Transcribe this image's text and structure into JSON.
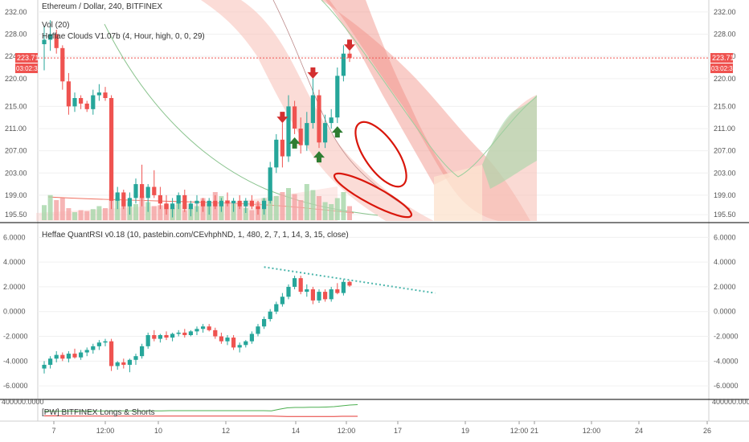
{
  "chart_data": [
    {
      "type": "candlestick",
      "title": "Ethereum / Dollar, 240, BITFINEX",
      "indicators": [
        "Vol (20)",
        "Heffae Clouds V1.07b (4, Hour, high, 0, 0, 29)"
      ],
      "y_ticks": [
        "232.00",
        "228.00",
        "224.00",
        "220.00",
        "215.00",
        "211.00",
        "207.00",
        "203.00",
        "199.00",
        "195.50"
      ],
      "ylim": [
        194.5,
        233.0
      ],
      "last_price": "223.71",
      "countdown": "03:02:32",
      "candles": [
        {
          "o": 226.2,
          "h": 229.5,
          "l": 221.5,
          "c": 227.0
        },
        {
          "o": 227.0,
          "h": 230.5,
          "l": 225.0,
          "c": 228.0
        },
        {
          "o": 228.0,
          "h": 228.8,
          "l": 224.5,
          "c": 225.5
        },
        {
          "o": 225.5,
          "h": 226.0,
          "l": 218.0,
          "c": 219.5
        },
        {
          "o": 219.5,
          "h": 221.0,
          "l": 213.5,
          "c": 215.0
        },
        {
          "o": 215.0,
          "h": 217.5,
          "l": 214.0,
          "c": 216.5
        },
        {
          "o": 216.5,
          "h": 217.0,
          "l": 214.5,
          "c": 215.5
        },
        {
          "o": 215.5,
          "h": 216.0,
          "l": 214.0,
          "c": 214.5
        },
        {
          "o": 214.5,
          "h": 218.0,
          "l": 213.5,
          "c": 217.0
        },
        {
          "o": 217.0,
          "h": 219.0,
          "l": 216.0,
          "c": 217.5
        },
        {
          "o": 217.5,
          "h": 218.5,
          "l": 216.0,
          "c": 216.5
        },
        {
          "o": 216.5,
          "h": 217.0,
          "l": 196.5,
          "c": 198.0
        },
        {
          "o": 198.0,
          "h": 200.5,
          "l": 196.5,
          "c": 199.5
        },
        {
          "o": 199.5,
          "h": 200.0,
          "l": 196.5,
          "c": 197.0
        },
        {
          "o": 197.0,
          "h": 199.5,
          "l": 195.5,
          "c": 198.5
        },
        {
          "o": 198.5,
          "h": 202.0,
          "l": 197.5,
          "c": 201.0
        },
        {
          "o": 201.0,
          "h": 204.5,
          "l": 197.0,
          "c": 198.5
        },
        {
          "o": 198.5,
          "h": 201.0,
          "l": 196.0,
          "c": 200.5
        },
        {
          "o": 200.5,
          "h": 203.5,
          "l": 198.5,
          "c": 199.0
        },
        {
          "o": 199.0,
          "h": 200.5,
          "l": 196.5,
          "c": 197.5
        },
        {
          "o": 197.5,
          "h": 199.0,
          "l": 195.5,
          "c": 196.5
        },
        {
          "o": 196.5,
          "h": 198.5,
          "l": 195.0,
          "c": 197.5
        },
        {
          "o": 197.5,
          "h": 199.5,
          "l": 196.5,
          "c": 199.0
        },
        {
          "o": 199.0,
          "h": 200.0,
          "l": 196.0,
          "c": 196.5
        },
        {
          "o": 196.5,
          "h": 198.0,
          "l": 195.2,
          "c": 197.5
        },
        {
          "o": 197.5,
          "h": 199.0,
          "l": 196.0,
          "c": 198.0
        },
        {
          "o": 198.0,
          "h": 198.5,
          "l": 196.0,
          "c": 197.0
        },
        {
          "o": 197.0,
          "h": 198.5,
          "l": 195.5,
          "c": 198.0
        },
        {
          "o": 198.0,
          "h": 199.0,
          "l": 196.5,
          "c": 197.0
        },
        {
          "o": 197.0,
          "h": 198.5,
          "l": 196.0,
          "c": 198.0
        },
        {
          "o": 198.0,
          "h": 199.5,
          "l": 197.0,
          "c": 197.5
        },
        {
          "o": 197.5,
          "h": 198.5,
          "l": 196.0,
          "c": 198.0
        },
        {
          "o": 198.0,
          "h": 199.0,
          "l": 196.5,
          "c": 197.0
        },
        {
          "o": 197.0,
          "h": 198.5,
          "l": 195.8,
          "c": 198.0
        },
        {
          "o": 198.0,
          "h": 199.0,
          "l": 196.5,
          "c": 197.0
        },
        {
          "o": 197.0,
          "h": 198.0,
          "l": 195.5,
          "c": 196.5
        },
        {
          "o": 196.5,
          "h": 198.5,
          "l": 195.5,
          "c": 198.0
        },
        {
          "o": 198.0,
          "h": 205.0,
          "l": 197.5,
          "c": 204.0
        },
        {
          "o": 204.0,
          "h": 210.0,
          "l": 203.0,
          "c": 209.0
        },
        {
          "o": 209.0,
          "h": 212.0,
          "l": 204.0,
          "c": 206.0
        },
        {
          "o": 206.0,
          "h": 217.0,
          "l": 205.0,
          "c": 215.0
        },
        {
          "o": 215.0,
          "h": 216.0,
          "l": 210.0,
          "c": 211.0
        },
        {
          "o": 211.0,
          "h": 213.0,
          "l": 206.5,
          "c": 208.0
        },
        {
          "o": 208.0,
          "h": 214.0,
          "l": 207.0,
          "c": 212.0
        },
        {
          "o": 212.0,
          "h": 220.0,
          "l": 211.0,
          "c": 217.0
        },
        {
          "o": 217.0,
          "h": 218.0,
          "l": 207.5,
          "c": 208.5
        },
        {
          "o": 208.5,
          "h": 213.5,
          "l": 207.5,
          "c": 212.0
        },
        {
          "o": 212.0,
          "h": 214.5,
          "l": 211.0,
          "c": 213.0
        },
        {
          "o": 213.0,
          "h": 222.0,
          "l": 212.0,
          "c": 220.5
        },
        {
          "o": 220.5,
          "h": 226.0,
          "l": 219.5,
          "c": 224.5
        },
        {
          "o": 224.5,
          "h": 225.0,
          "l": 223.0,
          "c": 223.7
        }
      ],
      "volume": [
        15,
        25,
        20,
        22,
        12,
        8,
        10,
        9,
        11,
        14,
        12,
        30,
        22,
        20,
        18,
        16,
        24,
        18,
        14,
        15,
        16,
        12,
        18,
        10,
        12,
        14,
        22,
        16,
        28,
        24,
        20,
        16,
        14,
        12,
        10,
        18,
        22,
        30,
        24,
        28,
        32,
        26,
        20,
        36,
        30,
        24,
        18,
        16,
        22,
        28,
        14
      ],
      "signals": [
        {
          "i": 39,
          "dir": "down"
        },
        {
          "i": 44,
          "dir": "down"
        },
        {
          "i": 50,
          "dir": "down"
        },
        {
          "i": 41,
          "dir": "up"
        },
        {
          "i": 45,
          "dir": "up"
        },
        {
          "i": 48,
          "dir": "up"
        }
      ]
    },
    {
      "type": "candlestick",
      "title": "Heffae QuantRSI v0.18 (10, pastebin.com/CEvhphND, 1, 480, 2, 7, 1, 14, 3, 15, close)",
      "y_ticks": [
        "6.0000",
        "4.0000",
        "2.0000",
        "0.0000",
        "-2.0000",
        "-4.0000",
        "-6.0000"
      ],
      "ylim": [
        -6.9,
        6.8
      ],
      "candles": [
        {
          "o": -4.6,
          "h": -4.0,
          "l": -5.0,
          "c": -4.3
        },
        {
          "o": -4.3,
          "h": -3.6,
          "l": -4.6,
          "c": -3.8
        },
        {
          "o": -3.8,
          "h": -3.2,
          "l": -4.1,
          "c": -3.5
        },
        {
          "o": -3.5,
          "h": -3.3,
          "l": -4.0,
          "c": -3.8
        },
        {
          "o": -3.8,
          "h": -3.2,
          "l": -4.1,
          "c": -3.4
        },
        {
          "o": -3.4,
          "h": -3.0,
          "l": -3.8,
          "c": -3.7
        },
        {
          "o": -3.7,
          "h": -3.1,
          "l": -3.9,
          "c": -3.3
        },
        {
          "o": -3.3,
          "h": -2.9,
          "l": -3.6,
          "c": -3.1
        },
        {
          "o": -3.1,
          "h": -2.6,
          "l": -3.4,
          "c": -2.8
        },
        {
          "o": -2.8,
          "h": -2.3,
          "l": -3.1,
          "c": -2.5
        },
        {
          "o": -2.5,
          "h": -2.2,
          "l": -2.8,
          "c": -2.4
        },
        {
          "o": -2.4,
          "h": -2.2,
          "l": -4.8,
          "c": -4.4
        },
        {
          "o": -4.4,
          "h": -4.0,
          "l": -4.7,
          "c": -4.1
        },
        {
          "o": -4.1,
          "h": -3.8,
          "l": -4.6,
          "c": -4.3
        },
        {
          "o": -4.3,
          "h": -3.8,
          "l": -4.9,
          "c": -3.9
        },
        {
          "o": -3.9,
          "h": -3.4,
          "l": -4.3,
          "c": -3.6
        },
        {
          "o": -3.6,
          "h": -2.6,
          "l": -3.8,
          "c": -2.8
        },
        {
          "o": -2.8,
          "h": -1.7,
          "l": -3.0,
          "c": -1.9
        },
        {
          "o": -1.9,
          "h": -1.5,
          "l": -2.4,
          "c": -2.2
        },
        {
          "o": -2.2,
          "h": -1.8,
          "l": -2.5,
          "c": -1.9
        },
        {
          "o": -1.9,
          "h": -1.6,
          "l": -2.3,
          "c": -2.1
        },
        {
          "o": -2.1,
          "h": -1.7,
          "l": -2.4,
          "c": -1.8
        },
        {
          "o": -1.8,
          "h": -1.5,
          "l": -2.0,
          "c": -1.7
        },
        {
          "o": -1.7,
          "h": -1.4,
          "l": -2.1,
          "c": -1.9
        },
        {
          "o": -1.9,
          "h": -1.5,
          "l": -2.0,
          "c": -1.6
        },
        {
          "o": -1.6,
          "h": -1.2,
          "l": -1.9,
          "c": -1.4
        },
        {
          "o": -1.4,
          "h": -1.0,
          "l": -1.7,
          "c": -1.2
        },
        {
          "o": -1.2,
          "h": -1.0,
          "l": -1.6,
          "c": -1.5
        },
        {
          "o": -1.5,
          "h": -1.3,
          "l": -2.2,
          "c": -2.0
        },
        {
          "o": -2.0,
          "h": -1.7,
          "l": -2.6,
          "c": -2.4
        },
        {
          "o": -2.4,
          "h": -1.9,
          "l": -2.7,
          "c": -2.1
        },
        {
          "o": -2.1,
          "h": -1.9,
          "l": -3.1,
          "c": -2.9
        },
        {
          "o": -2.9,
          "h": -2.5,
          "l": -3.3,
          "c": -2.7
        },
        {
          "o": -2.7,
          "h": -2.3,
          "l": -2.9,
          "c": -2.4
        },
        {
          "o": -2.4,
          "h": -1.6,
          "l": -2.6,
          "c": -1.8
        },
        {
          "o": -1.8,
          "h": -1.0,
          "l": -2.0,
          "c": -1.2
        },
        {
          "o": -1.2,
          "h": -0.4,
          "l": -1.4,
          "c": -0.6
        },
        {
          "o": -0.6,
          "h": 0.2,
          "l": -0.8,
          "c": 0.0
        },
        {
          "o": 0.0,
          "h": 0.8,
          "l": -0.2,
          "c": 0.6
        },
        {
          "o": 0.6,
          "h": 1.5,
          "l": 0.4,
          "c": 1.2
        },
        {
          "o": 1.2,
          "h": 2.2,
          "l": 1.0,
          "c": 2.0
        },
        {
          "o": 2.0,
          "h": 2.9,
          "l": 1.8,
          "c": 2.7
        },
        {
          "o": 2.7,
          "h": 2.9,
          "l": 1.4,
          "c": 1.6
        },
        {
          "o": 1.6,
          "h": 2.2,
          "l": 1.2,
          "c": 1.8
        },
        {
          "o": 1.8,
          "h": 2.0,
          "l": 0.6,
          "c": 0.9
        },
        {
          "o": 0.9,
          "h": 1.8,
          "l": 0.7,
          "c": 1.6
        },
        {
          "o": 1.6,
          "h": 1.8,
          "l": 0.8,
          "c": 1.0
        },
        {
          "o": 1.0,
          "h": 2.0,
          "l": 0.8,
          "c": 1.8
        },
        {
          "o": 1.8,
          "h": 2.3,
          "l": 1.4,
          "c": 1.5
        },
        {
          "o": 1.5,
          "h": 2.6,
          "l": 1.3,
          "c": 2.4
        },
        {
          "o": 2.4,
          "h": 2.5,
          "l": 2.0,
          "c": 2.1
        }
      ],
      "trendline": {
        "from_index": 36,
        "from_value": 3.6,
        "to_index": 64,
        "to_value": 1.5
      }
    },
    {
      "type": "line",
      "title": "[PW] BITFINEX Longs & Shorts",
      "y_ticks": [
        "400000.0000"
      ],
      "series": [
        {
          "color": "#4caf50",
          "values": [
            0.45,
            0.45,
            0.45,
            0.46,
            0.46,
            0.46,
            0.46,
            0.46,
            0.47,
            0.47,
            0.47,
            0.47,
            0.47,
            0.47,
            0.47,
            0.47,
            0.48,
            0.48,
            0.48,
            0.48,
            0.48,
            0.48,
            0.48,
            0.48,
            0.48,
            0.48,
            0.48,
            0.48,
            0.48,
            0.47,
            0.55,
            0.62,
            0.64,
            0.64,
            0.65,
            0.65,
            0.66,
            0.68,
            0.72,
            0.76,
            0.78
          ]
        },
        {
          "color": "#e53935",
          "values": [
            0.22,
            0.22,
            0.22,
            0.21,
            0.21,
            0.21,
            0.21,
            0.21,
            0.21,
            0.21,
            0.21,
            0.21,
            0.21,
            0.21,
            0.21,
            0.21,
            0.21,
            0.21,
            0.21,
            0.21,
            0.21,
            0.21,
            0.21,
            0.21,
            0.21,
            0.21,
            0.21,
            0.21,
            0.21,
            0.21,
            0.2,
            0.19,
            0.19,
            0.19,
            0.19,
            0.19,
            0.19,
            0.19,
            0.2,
            0.2,
            0.2
          ]
        }
      ]
    }
  ],
  "x_axis": {
    "ticks": [
      "7",
      "12:00",
      "10",
      "12",
      "14",
      "12:00",
      "17",
      "19",
      "12:00",
      "21",
      "12:00",
      "24",
      "26"
    ]
  },
  "colors": {
    "up": "#26a69a",
    "down": "#ef5350",
    "alert": "#d32f2f",
    "signal_up": "#2e7d32",
    "cloud_red": "#f4a49a",
    "cloud_green": "#a5d6a7"
  }
}
